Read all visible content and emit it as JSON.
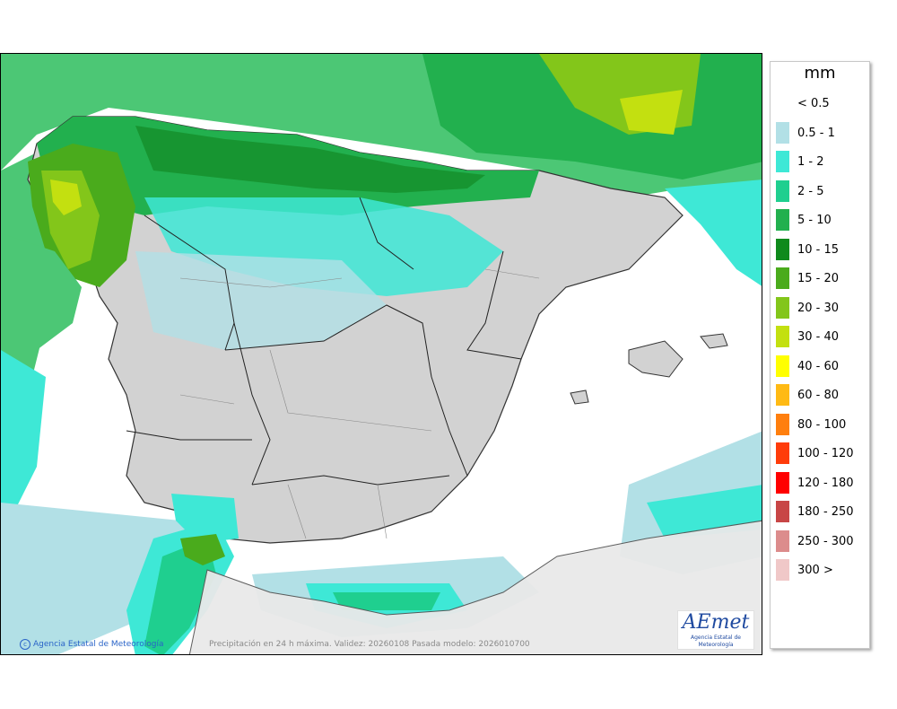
{
  "legend": {
    "title": "mm",
    "items": [
      {
        "label": "< 0.5",
        "color": "#ffffff"
      },
      {
        "label": "0.5 - 1",
        "color": "#b2e0e6"
      },
      {
        "label": "1 - 2",
        "color": "#3ee8d6"
      },
      {
        "label": "2 - 5",
        "color": "#1fcf8f"
      },
      {
        "label": "5 - 10",
        "color": "#22b04e"
      },
      {
        "label": "10 - 15",
        "color": "#0f8a1c"
      },
      {
        "label": "15 - 20",
        "color": "#4aab1c"
      },
      {
        "label": "20 - 30",
        "color": "#83c61a"
      },
      {
        "label": "30 - 40",
        "color": "#c3e010"
      },
      {
        "label": "40 - 60",
        "color": "#ffff00"
      },
      {
        "label": "60 - 80",
        "color": "#ffba14"
      },
      {
        "label": "80 - 100",
        "color": "#ff7f0e"
      },
      {
        "label": "100 - 120",
        "color": "#ff3c0a"
      },
      {
        "label": "120 - 180",
        "color": "#ff0000"
      },
      {
        "label": "180 - 250",
        "color": "#c84646"
      },
      {
        "label": "250 - 300",
        "color": "#dc8c8c"
      },
      {
        "label": "300 >",
        "color": "#f0c8c8"
      }
    ]
  },
  "credit": "Agencia Estatal de Meteorología",
  "caption": "Precipitación en 24 h máxima. Validez: 20260108 Pasada modelo: 2026010700",
  "logo": {
    "word": "AEmet",
    "sub": "Agencia Estatal de Meteorología"
  }
}
